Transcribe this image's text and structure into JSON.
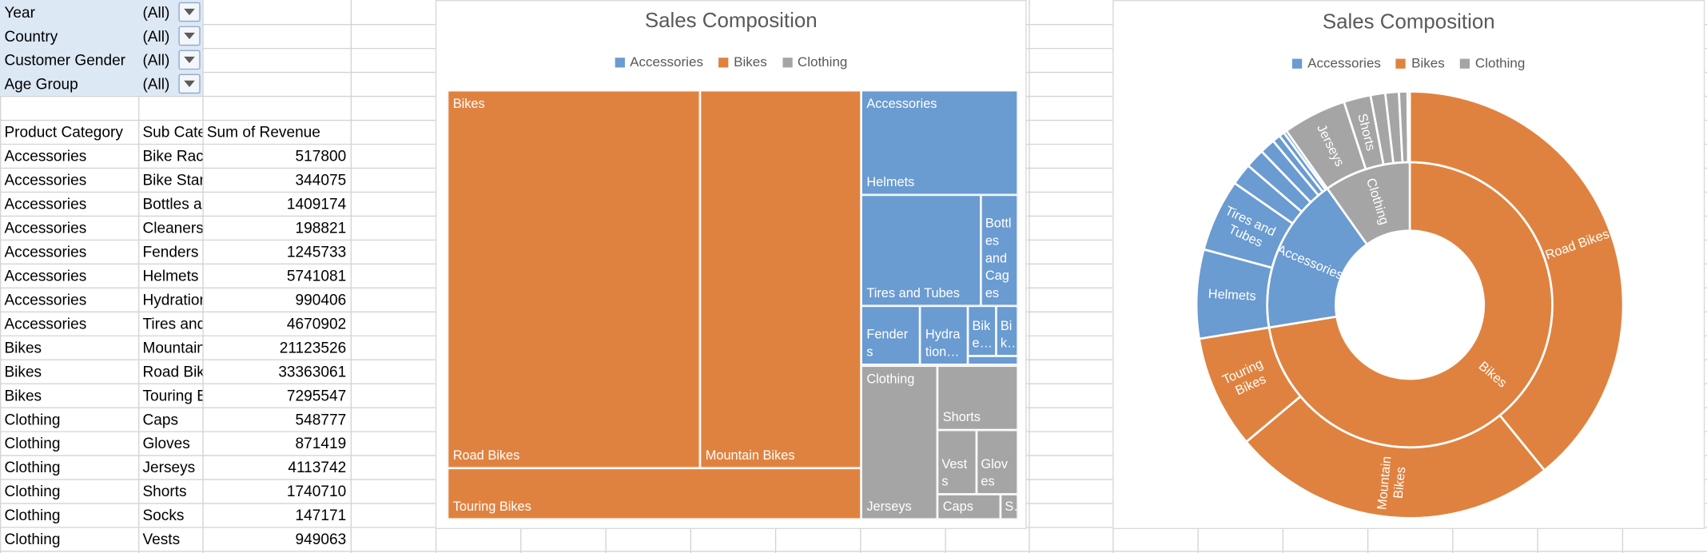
{
  "filters": [
    {
      "field": "Year",
      "value": "(All)"
    },
    {
      "field": "Country",
      "value": "(All)"
    },
    {
      "field": "Customer Gender",
      "value": "(All)"
    },
    {
      "field": "Age Group",
      "value": "(All)"
    }
  ],
  "table": {
    "header": [
      "Product Category",
      "Sub Category",
      "Sum of Revenue"
    ],
    "rows": [
      [
        "Accessories",
        "Bike Racks",
        517800
      ],
      [
        "Accessories",
        "Bike Stands",
        344075
      ],
      [
        "Accessories",
        "Bottles and Cages",
        1409174
      ],
      [
        "Accessories",
        "Cleaners",
        198821
      ],
      [
        "Accessories",
        "Fenders",
        1245733
      ],
      [
        "Accessories",
        "Helmets",
        5741081
      ],
      [
        "Accessories",
        "Hydration Packs",
        990406
      ],
      [
        "Accessories",
        "Tires and Tubes",
        4670902
      ],
      [
        "Bikes",
        "Mountain Bikes",
        21123526
      ],
      [
        "Bikes",
        "Road Bikes",
        33363061
      ],
      [
        "Bikes",
        "Touring Bikes",
        7295547
      ],
      [
        "Clothing",
        "Caps",
        548777
      ],
      [
        "Clothing",
        "Gloves",
        871419
      ],
      [
        "Clothing",
        "Jerseys",
        4113742
      ],
      [
        "Clothing",
        "Shorts",
        1740710
      ],
      [
        "Clothing",
        "Socks",
        147171
      ],
      [
        "Clothing",
        "Vests",
        949063
      ]
    ]
  },
  "charts": [
    {
      "type": "treemap",
      "title": "Sales Composition",
      "legend": [
        {
          "name": "Accessories",
          "color": "#6a9bd1"
        },
        {
          "name": "Bikes",
          "color": "#e0823f"
        },
        {
          "name": "Clothing",
          "color": "#a5a5a5"
        }
      ]
    },
    {
      "type": "sunburst",
      "title": "Sales Composition",
      "legend": [
        {
          "name": "Accessories",
          "color": "#6a9bd1"
        },
        {
          "name": "Bikes",
          "color": "#e0823f"
        },
        {
          "name": "Clothing",
          "color": "#a5a5a5"
        }
      ]
    }
  ]
}
